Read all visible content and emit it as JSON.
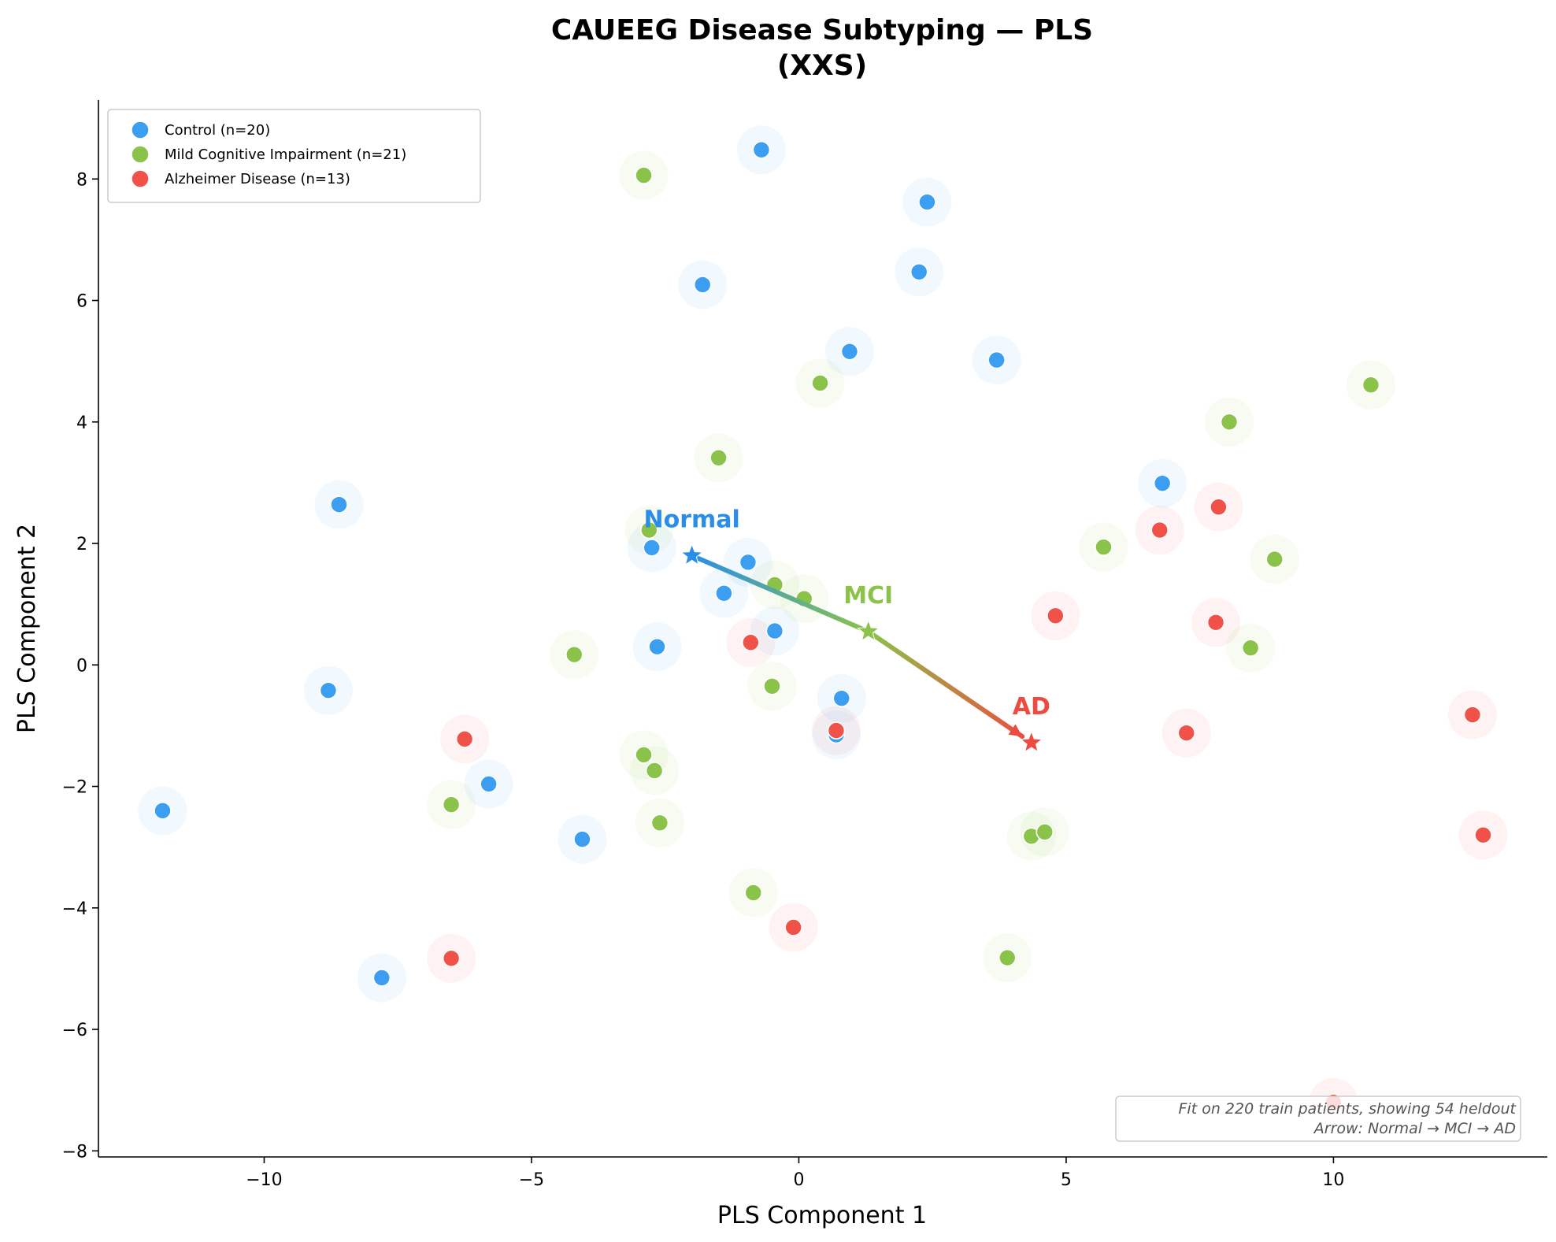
{
  "chart_data": {
    "type": "scatter",
    "title": "CAUEEG Disease Subtyping — PLS",
    "subtitle": "(XXS)",
    "xlabel": "PLS Component 1",
    "ylabel": "PLS Component 2",
    "xlim": [
      -13.1,
      14.0
    ],
    "ylim": [
      -8.1,
      9.3
    ],
    "xticks": [
      -10,
      -5,
      0,
      5,
      10
    ],
    "xtick_labels": [
      "−10",
      "−5",
      "0",
      "5",
      "10"
    ],
    "yticks": [
      -8,
      -6,
      -4,
      -2,
      0,
      2,
      4,
      6,
      8
    ],
    "ytick_labels": [
      "−8",
      "−6",
      "−4",
      "−2",
      "0",
      "2",
      "4",
      "6",
      "8"
    ],
    "grid": false,
    "legend_position": "top-left",
    "series": [
      {
        "name": "Control (n=20)",
        "color": "#3b9ef0",
        "points": [
          [
            -0.7,
            8.48
          ],
          [
            2.4,
            7.62
          ],
          [
            -1.8,
            6.26
          ],
          [
            2.25,
            6.47
          ],
          [
            0.95,
            5.16
          ],
          [
            3.7,
            5.02
          ],
          [
            -8.6,
            2.64
          ],
          [
            6.8,
            2.99
          ],
          [
            -2.75,
            1.93
          ],
          [
            -0.95,
            1.69
          ],
          [
            -1.4,
            1.18
          ],
          [
            -0.45,
            0.56
          ],
          [
            -2.65,
            0.3
          ],
          [
            -8.8,
            -0.42
          ],
          [
            0.8,
            -0.55
          ],
          [
            0.7,
            -1.15
          ],
          [
            -11.9,
            -2.4
          ],
          [
            -5.8,
            -1.96
          ],
          [
            -4.05,
            -2.87
          ],
          [
            -7.8,
            -5.15
          ]
        ]
      },
      {
        "name": "Mild Cognitive Impairment (n=21)",
        "color": "#8bc34a",
        "points": [
          [
            -2.9,
            8.06
          ],
          [
            0.4,
            4.64
          ],
          [
            -1.5,
            3.41
          ],
          [
            10.7,
            4.61
          ],
          [
            8.05,
            4.0
          ],
          [
            -2.8,
            2.22
          ],
          [
            5.7,
            1.94
          ],
          [
            8.9,
            1.74
          ],
          [
            -0.45,
            1.32
          ],
          [
            0.1,
            1.09
          ],
          [
            -4.2,
            0.17
          ],
          [
            8.45,
            0.28
          ],
          [
            -0.5,
            -0.35
          ],
          [
            -2.9,
            -1.48
          ],
          [
            -2.7,
            -1.74
          ],
          [
            -6.5,
            -2.3
          ],
          [
            -2.6,
            -2.6
          ],
          [
            4.35,
            -2.82
          ],
          [
            4.6,
            -2.75
          ],
          [
            -0.85,
            -3.75
          ],
          [
            3.9,
            -4.82
          ]
        ]
      },
      {
        "name": "Alzheimer Disease (n=13)",
        "color": "#f0524a",
        "points": [
          [
            7.85,
            2.6
          ],
          [
            6.75,
            2.22
          ],
          [
            4.8,
            0.81
          ],
          [
            7.8,
            0.7
          ],
          [
            -0.9,
            0.37
          ],
          [
            0.7,
            -1.08
          ],
          [
            -6.25,
            -1.22
          ],
          [
            7.25,
            -1.12
          ],
          [
            12.6,
            -0.82
          ],
          [
            12.8,
            -2.8
          ],
          [
            -0.1,
            -4.32
          ],
          [
            -6.5,
            -4.83
          ],
          [
            10.0,
            -7.2
          ]
        ]
      }
    ],
    "annotations": [
      {
        "label": "Normal",
        "x": -2.0,
        "y": 1.8,
        "color": "#2a8ee8"
      },
      {
        "label": "MCI",
        "x": 1.3,
        "y": 0.55,
        "color": "#8bc34a"
      },
      {
        "label": "AD",
        "x": 4.35,
        "y": -1.28,
        "color": "#ee4a40"
      }
    ],
    "trajectory_colors": {
      "start": "#2a8ee8",
      "mid": "#8bc34a",
      "end": "#ee4a40"
    },
    "footnote": [
      "Fit on 220 train patients, showing 54 heldout",
      "Arrow: Normal → MCI → AD"
    ]
  }
}
